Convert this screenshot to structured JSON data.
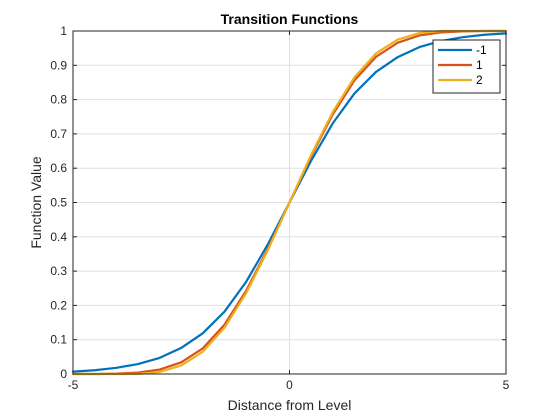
{
  "chart_data": {
    "type": "line",
    "title": "Transition Functions",
    "xlabel": "Distance from Level",
    "ylabel": "Function Value",
    "xlim": [
      -5,
      5
    ],
    "ylim": [
      0,
      1
    ],
    "xticks": [
      -5,
      0,
      5
    ],
    "yticks": [
      0,
      0.1,
      0.2,
      0.3,
      0.4,
      0.5,
      0.6,
      0.7,
      0.8,
      0.9,
      1
    ],
    "xtick_labels": [
      "-5",
      "0",
      "5"
    ],
    "ytick_labels": [
      "0",
      "0.1",
      "0.2",
      "0.3",
      "0.4",
      "0.5",
      "0.6",
      "0.7",
      "0.8",
      "0.9",
      "1"
    ],
    "grid": true,
    "legend_position": "top-right",
    "x": [
      -5,
      -4.5,
      -4,
      -3.5,
      -3,
      -2.5,
      -2,
      -1.5,
      -1,
      -0.5,
      0,
      0.5,
      1,
      1.5,
      2,
      2.5,
      3,
      3.5,
      4,
      4.5,
      5
    ],
    "series": [
      {
        "name": "-1",
        "color": "#0072BD",
        "values": [
          0.007,
          0.011,
          0.018,
          0.029,
          0.047,
          0.076,
          0.119,
          0.182,
          0.269,
          0.378,
          0.5,
          0.622,
          0.731,
          0.818,
          0.881,
          0.924,
          0.953,
          0.971,
          0.982,
          0.989,
          0.993
        ]
      },
      {
        "name": "1",
        "color": "#D95319",
        "values": [
          0.0,
          0.0,
          0.001,
          0.004,
          0.013,
          0.034,
          0.075,
          0.144,
          0.243,
          0.365,
          0.5,
          0.635,
          0.757,
          0.856,
          0.925,
          0.966,
          0.987,
          0.996,
          0.999,
          1.0,
          1.0
        ]
      },
      {
        "name": "2",
        "color": "#EDB120",
        "values": [
          0.0,
          0.0,
          0.0,
          0.0,
          0.006,
          0.025,
          0.065,
          0.135,
          0.236,
          0.361,
          0.5,
          0.639,
          0.764,
          0.865,
          0.935,
          0.975,
          0.994,
          1.0,
          1.0,
          1.0,
          1.0
        ]
      }
    ]
  }
}
